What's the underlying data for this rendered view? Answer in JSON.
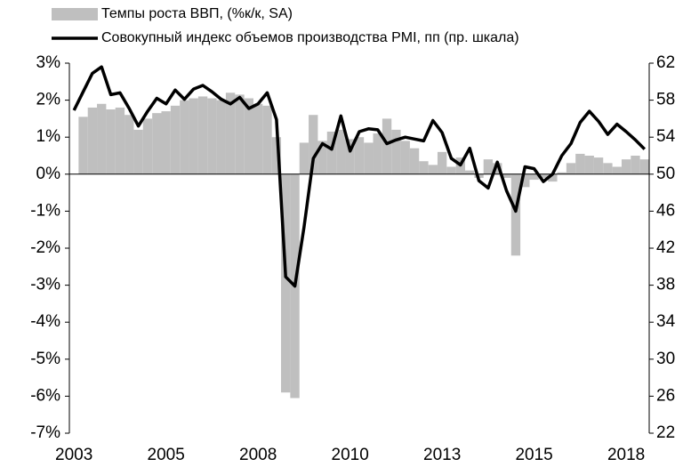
{
  "chart_data": {
    "type": "bar_line",
    "categories": [
      "2003",
      null,
      null,
      null,
      null,
      null,
      null,
      null,
      null,
      null,
      "2005",
      null,
      null,
      null,
      null,
      null,
      null,
      null,
      null,
      null,
      "2008",
      null,
      null,
      null,
      null,
      null,
      null,
      null,
      null,
      null,
      "2010",
      null,
      null,
      null,
      null,
      null,
      null,
      null,
      null,
      null,
      "2013",
      null,
      null,
      null,
      null,
      null,
      null,
      null,
      null,
      null,
      "2015",
      null,
      null,
      null,
      null,
      null,
      null,
      null,
      null,
      null,
      "2018",
      null,
      null
    ],
    "series": [
      {
        "name": "Темпы роста ВВП, (%к/к, SA)",
        "type": "bar",
        "color": "#bfbfbf",
        "values": [
          null,
          1.55,
          1.8,
          1.9,
          1.75,
          1.8,
          1.6,
          1.2,
          1.5,
          1.65,
          1.7,
          1.85,
          2.0,
          2.05,
          2.1,
          2.05,
          2.0,
          2.2,
          2.15,
          2.05,
          1.9,
          1.85,
          1.0,
          -5.9,
          -6.05,
          0.85,
          1.6,
          0.9,
          1.15,
          1.2,
          0.95,
          1.0,
          0.85,
          1.1,
          1.5,
          1.2,
          0.9,
          0.7,
          0.35,
          0.25,
          0.6,
          0.2,
          0.45,
          0.1,
          -0.1,
          0.4,
          0.3,
          -0.1,
          -2.2,
          -0.35,
          -0.15,
          -0.1,
          -0.2,
          0.05,
          0.3,
          0.55,
          0.5,
          0.45,
          0.3,
          0.2,
          0.4,
          0.5,
          0.4
        ]
      },
      {
        "name": "Совокупный индекс объемов производства PMI, пп (пр. шкала)",
        "type": "line",
        "axis": "y2",
        "color": "#000000",
        "values": [
          56.9,
          58.9,
          60.9,
          61.6,
          58.6,
          58.8,
          57.1,
          55.2,
          56.8,
          58.2,
          57.6,
          59.1,
          58.1,
          59.2,
          59.6,
          58.9,
          58.1,
          57.6,
          58.3,
          57.1,
          57.6,
          58.8,
          55.9,
          38.9,
          37.9,
          44.3,
          51.7,
          53.3,
          52.7,
          56.3,
          52.5,
          54.6,
          54.9,
          54.8,
          53.3,
          53.7,
          54.0,
          53.8,
          53.6,
          55.8,
          54.5,
          51.7,
          51.0,
          52.8,
          49.3,
          48.5,
          51.3,
          48.2,
          46.0,
          50.8,
          50.6,
          49.2,
          50.0,
          52.0,
          53.3,
          55.6,
          56.8,
          55.7,
          54.3,
          55.4,
          54.6,
          53.7,
          52.7
        ]
      }
    ],
    "ylim": [
      -7,
      3
    ],
    "yticks": [
      {
        "value": 3,
        "label": "3%"
      },
      {
        "value": 2,
        "label": "2%"
      },
      {
        "value": 1,
        "label": "1%"
      },
      {
        "value": 0,
        "label": "0%"
      },
      {
        "value": -1,
        "label": "-1%"
      },
      {
        "value": -2,
        "label": "-2%"
      },
      {
        "value": -3,
        "label": "-3%"
      },
      {
        "value": -4,
        "label": "-4%"
      },
      {
        "value": -5,
        "label": "-5%"
      },
      {
        "value": -6,
        "label": "-6%"
      },
      {
        "value": -7,
        "label": "-7%"
      }
    ],
    "y2lim": [
      22,
      62
    ],
    "y2ticks": [
      62,
      58,
      54,
      50,
      46,
      42,
      38,
      34,
      30,
      26,
      22
    ]
  }
}
